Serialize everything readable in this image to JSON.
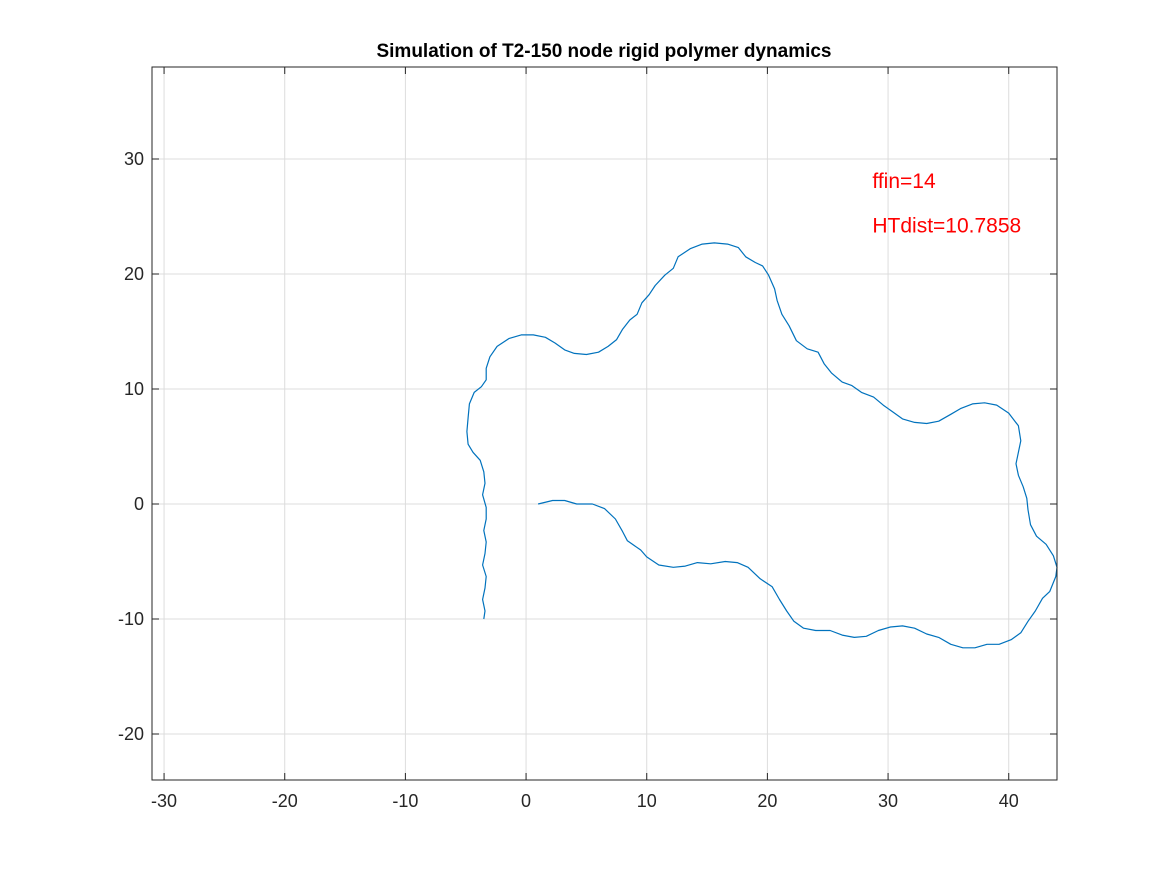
{
  "chart_data": {
    "type": "line",
    "title": "Simulation of T2-150 node rigid polymer dynamics",
    "xlabel": "",
    "ylabel": "",
    "xlim": [
      -31,
      44
    ],
    "ylim": [
      -24,
      38
    ],
    "xticks": [
      -30,
      -20,
      -10,
      0,
      10,
      20,
      30,
      40
    ],
    "yticks": [
      -20,
      -10,
      0,
      10,
      20,
      30
    ],
    "xtick_labels": [
      "-30",
      "-20",
      "-10",
      "0",
      "10",
      "20",
      "30",
      "40"
    ],
    "ytick_labels": [
      "-20",
      "-10",
      "0",
      "10",
      "20",
      "30"
    ],
    "grid": true,
    "line_color": "#0072BD",
    "annotation_color": "#FF0000",
    "annotations": [
      {
        "text": "ffin=14",
        "x": 28.7,
        "y": 27.5
      },
      {
        "text": "HTdist=10.7858",
        "x": 28.7,
        "y": 23.6
      }
    ],
    "series": [
      {
        "values": [
          [
            1.0,
            0.0
          ],
          [
            2.2,
            0.3
          ],
          [
            3.2,
            0.3
          ],
          [
            4.2,
            0.0
          ],
          [
            5.5,
            0.0
          ],
          [
            6.5,
            -0.4
          ],
          [
            7.4,
            -1.3
          ],
          [
            8.0,
            -2.4
          ],
          [
            8.4,
            -3.2
          ],
          [
            9.5,
            -4.0
          ],
          [
            10.0,
            -4.6
          ],
          [
            11.0,
            -5.3
          ],
          [
            12.2,
            -5.5
          ],
          [
            13.2,
            -5.4
          ],
          [
            14.2,
            -5.1
          ],
          [
            15.3,
            -5.2
          ],
          [
            16.5,
            -5.0
          ],
          [
            17.5,
            -5.1
          ],
          [
            18.4,
            -5.5
          ],
          [
            19.4,
            -6.5
          ],
          [
            20.4,
            -7.2
          ],
          [
            21.0,
            -8.3
          ],
          [
            21.6,
            -9.3
          ],
          [
            22.2,
            -10.2
          ],
          [
            23.0,
            -10.8
          ],
          [
            24.0,
            -11.0
          ],
          [
            25.2,
            -11.0
          ],
          [
            26.2,
            -11.4
          ],
          [
            27.2,
            -11.6
          ],
          [
            28.2,
            -11.5
          ],
          [
            29.2,
            -11.0
          ],
          [
            30.2,
            -10.7
          ],
          [
            31.2,
            -10.6
          ],
          [
            32.2,
            -10.8
          ],
          [
            33.2,
            -11.3
          ],
          [
            34.2,
            -11.6
          ],
          [
            35.2,
            -12.2
          ],
          [
            36.2,
            -12.5
          ],
          [
            37.2,
            -12.5
          ],
          [
            38.2,
            -12.2
          ],
          [
            39.2,
            -12.2
          ],
          [
            40.2,
            -11.8
          ],
          [
            41.0,
            -11.2
          ],
          [
            41.6,
            -10.2
          ],
          [
            42.2,
            -9.3
          ],
          [
            42.8,
            -8.2
          ],
          [
            43.4,
            -7.6
          ],
          [
            43.9,
            -6.3
          ],
          [
            44.0,
            -5.5
          ],
          [
            43.7,
            -4.5
          ],
          [
            43.1,
            -3.5
          ],
          [
            42.3,
            -2.8
          ],
          [
            41.8,
            -1.8
          ],
          [
            41.6,
            -0.5
          ],
          [
            41.5,
            0.5
          ],
          [
            41.2,
            1.5
          ],
          [
            40.8,
            2.5
          ],
          [
            40.6,
            3.5
          ],
          [
            40.8,
            4.5
          ],
          [
            41.0,
            5.5
          ],
          [
            40.8,
            6.8
          ],
          [
            40.0,
            7.9
          ],
          [
            39.0,
            8.6
          ],
          [
            38.0,
            8.8
          ],
          [
            37.0,
            8.7
          ],
          [
            36.0,
            8.3
          ],
          [
            35.2,
            7.8
          ],
          [
            34.2,
            7.2
          ],
          [
            33.2,
            7.0
          ],
          [
            32.2,
            7.1
          ],
          [
            31.2,
            7.4
          ],
          [
            30.4,
            8.0
          ],
          [
            29.6,
            8.6
          ],
          [
            28.8,
            9.3
          ],
          [
            27.8,
            9.7
          ],
          [
            27.0,
            10.3
          ],
          [
            26.2,
            10.6
          ],
          [
            25.3,
            11.4
          ],
          [
            24.7,
            12.2
          ],
          [
            24.2,
            13.2
          ],
          [
            23.3,
            13.5
          ],
          [
            22.4,
            14.2
          ],
          [
            21.8,
            15.5
          ],
          [
            21.2,
            16.5
          ],
          [
            20.8,
            17.7
          ],
          [
            20.6,
            18.7
          ],
          [
            20.1,
            19.9
          ],
          [
            19.6,
            20.7
          ],
          [
            19.0,
            21.0
          ],
          [
            18.2,
            21.5
          ],
          [
            17.6,
            22.3
          ],
          [
            16.7,
            22.6
          ],
          [
            15.6,
            22.7
          ],
          [
            14.6,
            22.6
          ],
          [
            13.6,
            22.2
          ],
          [
            12.6,
            21.5
          ],
          [
            12.2,
            20.5
          ],
          [
            11.5,
            19.9
          ],
          [
            10.7,
            19.0
          ],
          [
            10.2,
            18.2
          ],
          [
            9.6,
            17.5
          ],
          [
            9.2,
            16.5
          ],
          [
            8.6,
            16.0
          ],
          [
            8.0,
            15.2
          ],
          [
            7.5,
            14.3
          ],
          [
            6.8,
            13.7
          ],
          [
            6.0,
            13.2
          ],
          [
            5.0,
            13.0
          ],
          [
            4.0,
            13.1
          ],
          [
            3.2,
            13.4
          ],
          [
            2.4,
            14.0
          ],
          [
            1.6,
            14.5
          ],
          [
            0.6,
            14.7
          ],
          [
            -0.4,
            14.7
          ],
          [
            -1.4,
            14.4
          ],
          [
            -2.4,
            13.7
          ],
          [
            -3.0,
            12.8
          ],
          [
            -3.3,
            11.8
          ],
          [
            -3.3,
            10.8
          ],
          [
            -3.7,
            10.2
          ],
          [
            -4.3,
            9.7
          ],
          [
            -4.7,
            8.7
          ],
          [
            -4.8,
            7.5
          ],
          [
            -4.9,
            6.3
          ],
          [
            -4.8,
            5.2
          ],
          [
            -4.4,
            4.5
          ],
          [
            -3.8,
            3.8
          ],
          [
            -3.5,
            2.8
          ],
          [
            -3.4,
            1.8
          ],
          [
            -3.6,
            0.8
          ],
          [
            -3.3,
            -0.3
          ],
          [
            -3.3,
            -1.3
          ],
          [
            -3.5,
            -2.3
          ],
          [
            -3.3,
            -3.3
          ],
          [
            -3.4,
            -4.3
          ],
          [
            -3.6,
            -5.3
          ],
          [
            -3.3,
            -6.3
          ],
          [
            -3.4,
            -7.3
          ],
          [
            -3.6,
            -8.3
          ],
          [
            -3.4,
            -9.3
          ],
          [
            -3.5,
            -10.0
          ]
        ]
      }
    ]
  }
}
